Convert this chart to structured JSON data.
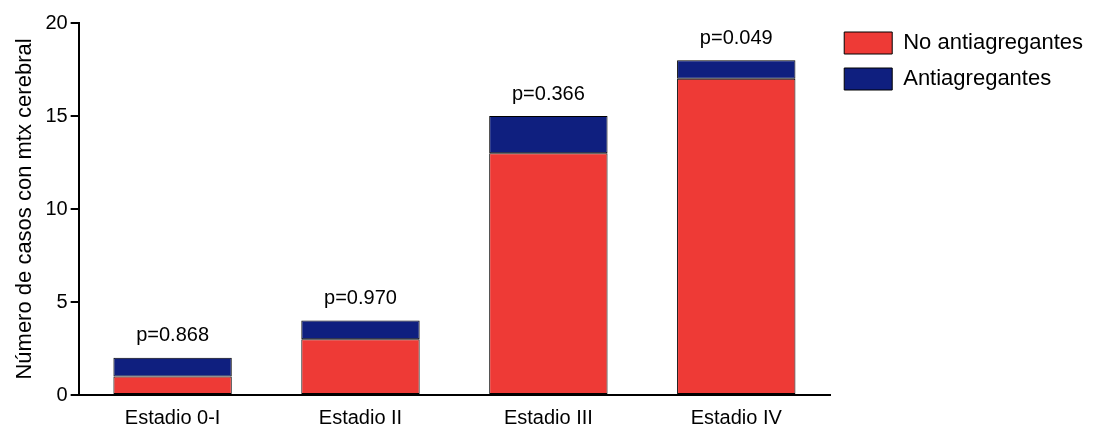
{
  "chart_data": {
    "type": "bar",
    "ylabel": "Número de casos con mtx cerebral",
    "categories": [
      "Estadio 0-I",
      "Estadio II",
      "Estadio III",
      "Estadio IV"
    ],
    "stacked": true,
    "ylim": [
      0,
      20
    ],
    "yticks": [
      0,
      5,
      10,
      15,
      20
    ],
    "grid": false,
    "legend": "top right",
    "series": [
      {
        "name": "No antiagregantes",
        "color": "#ee3a36",
        "values": [
          1,
          3,
          13,
          17
        ]
      },
      {
        "name": "Antiagregantes",
        "color": "#0f1f7f",
        "values": [
          1,
          1,
          2,
          1
        ]
      }
    ],
    "annotations": [
      {
        "text": "p=0.868",
        "x": "Estadio 0-I",
        "y": 2
      },
      {
        "text": "p=0.970",
        "x": "Estadio II",
        "y": 4
      },
      {
        "text": "p=0.366",
        "x": "Estadio III",
        "y": 15
      },
      {
        "text": "p=0.049",
        "x": "Estadio IV",
        "y": 18
      }
    ]
  }
}
